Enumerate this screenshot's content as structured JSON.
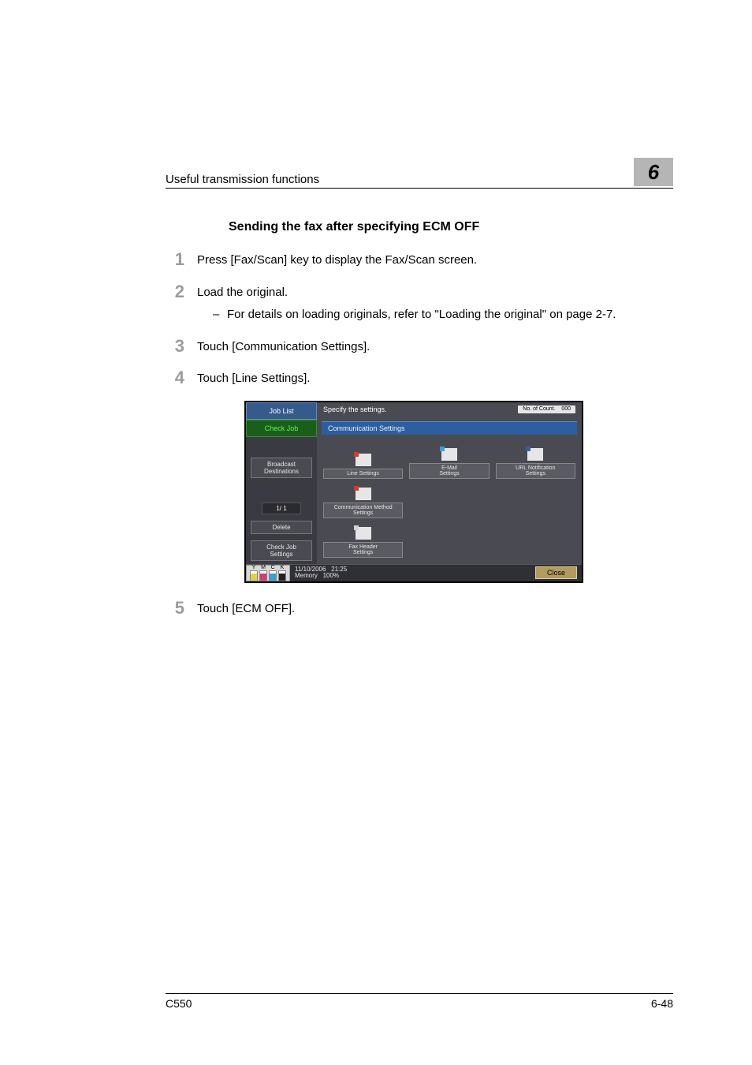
{
  "header": {
    "left": "Useful transmission functions",
    "chapter_number": "6"
  },
  "section_title": "Sending the fax after specifying ECM OFF",
  "steps": {
    "s1": {
      "num": "1",
      "text": "Press [Fax/Scan] key to display the Fax/Scan screen."
    },
    "s2": {
      "num": "2",
      "text": "Load the original.",
      "sub": "For details on loading originals, refer to \"Loading the original\" on page 2-7."
    },
    "s3": {
      "num": "3",
      "text": "Touch [Communication Settings]."
    },
    "s4": {
      "num": "4",
      "text": "Touch [Line Settings]."
    },
    "s5": {
      "num": "5",
      "text": "Touch [ECM OFF]."
    }
  },
  "screenshot": {
    "tabs": {
      "job_list": "Job List",
      "check_job": "Check Job"
    },
    "left_panel": {
      "broadcast": "Broadcast\nDestinations",
      "page_indicator": "1/  1",
      "delete": "Delete",
      "check_job_settings": "Check Job\nSettings"
    },
    "top_msg": "Specify the settings.",
    "sheet_label": "No. of Count.",
    "sheet_value": "000",
    "panel_title": "Communication Settings",
    "buttons": {
      "line": "Line Settings",
      "email": "E-Mail\nSettings",
      "url": "URL Notification\nSettings",
      "method": "Communication Method\nSettings",
      "header": "Fax Header\nSettings"
    },
    "icon_colors": {
      "line": "#d43a2f",
      "email": "#3aa0d4",
      "url": "#3a5fa0",
      "method": "#d43a2f",
      "header": "#cfd4d8"
    },
    "footer": {
      "date": "11/10/2006",
      "time": "21:25",
      "mem_label": "Memory",
      "mem_value": "100%",
      "close": "Close",
      "toner": [
        {
          "label": "Y",
          "color": "#e5d23a",
          "level": 0.7
        },
        {
          "label": "M",
          "color": "#d43a7a",
          "level": 0.7
        },
        {
          "label": "C",
          "color": "#3a9fd4",
          "level": 0.7
        },
        {
          "label": "K",
          "color": "#222222",
          "level": 0.7
        }
      ]
    }
  },
  "page_footer": {
    "model": "C550",
    "page": "6-48"
  }
}
